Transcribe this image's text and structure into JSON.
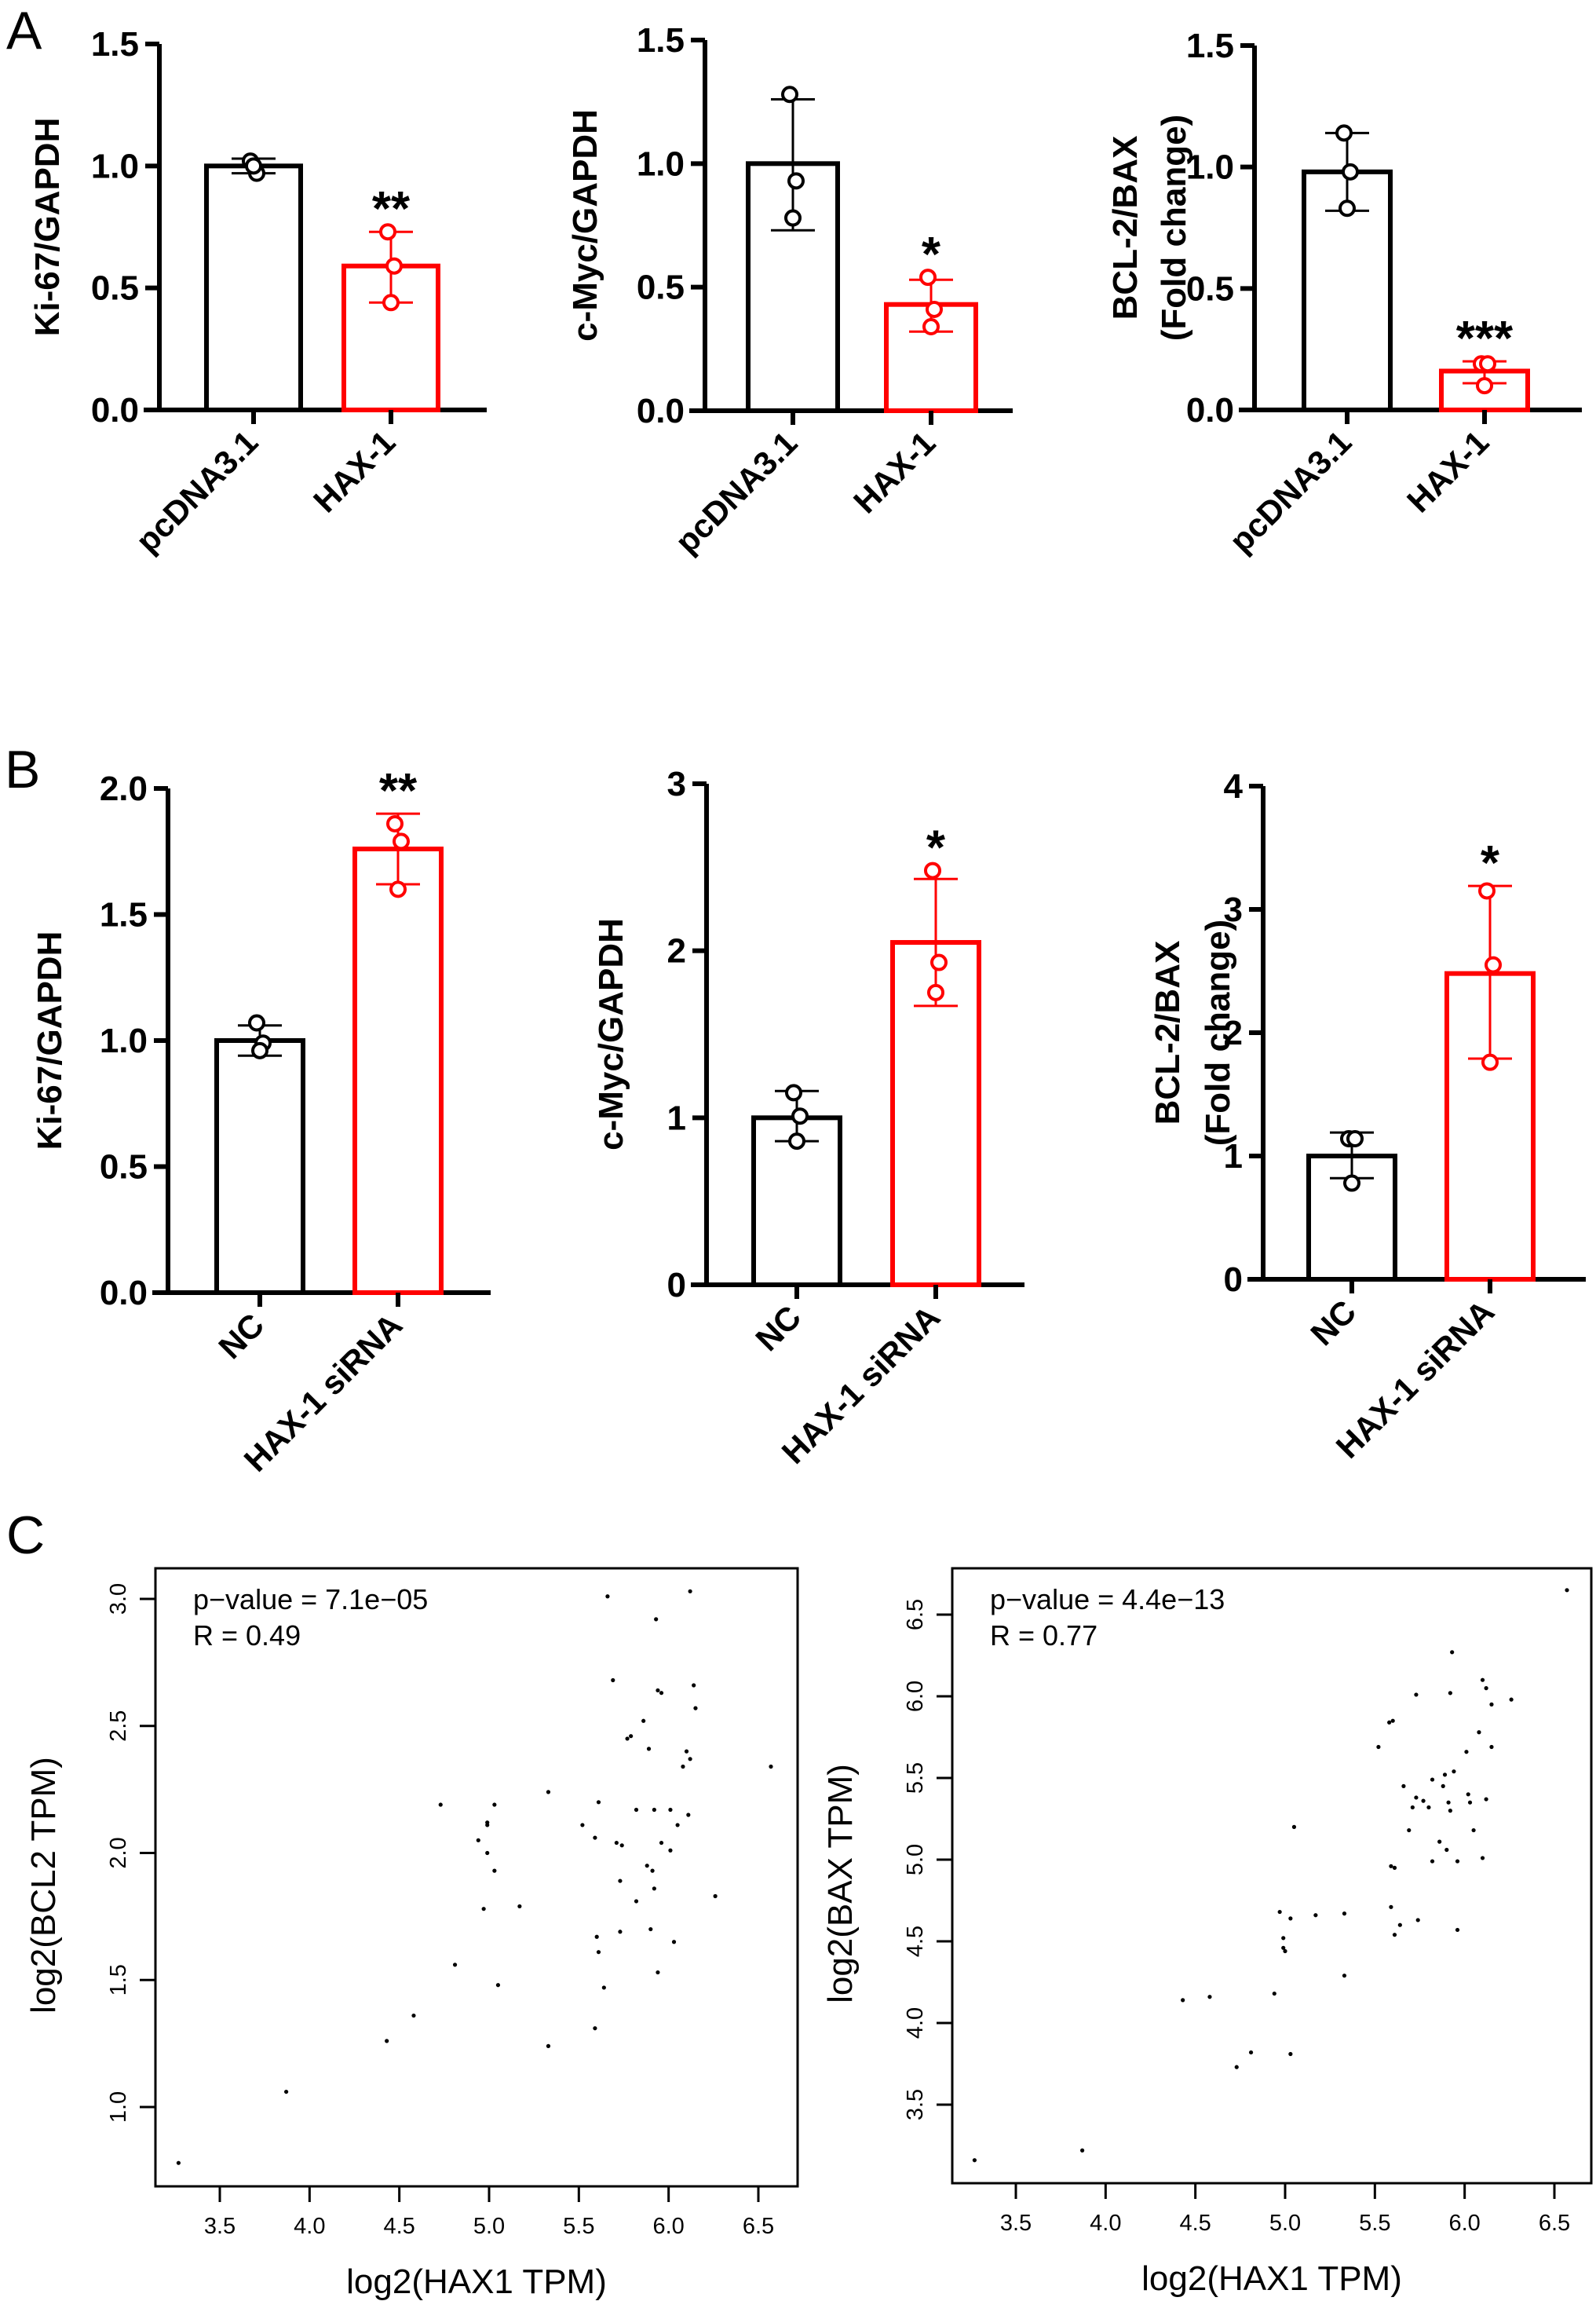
{
  "figure": {
    "panel_letters": [
      "A",
      "B",
      "C"
    ]
  },
  "chart_data": [
    {
      "id": "A1",
      "panel": "A",
      "type": "bar",
      "ylabel": [
        "Ki-67/GAPDH"
      ],
      "categories": [
        "pcDNA3.1",
        "HAX-1"
      ],
      "values": [
        1.0,
        0.59
      ],
      "errors": [
        [
          0.97,
          1.03
        ],
        [
          0.44,
          0.73
        ]
      ],
      "points": [
        [
          1.02,
          0.97,
          1.0
        ],
        [
          0.73,
          0.59,
          0.44
        ]
      ],
      "colors": [
        "#000000",
        "#ff0000"
      ],
      "significance": [
        "",
        "**"
      ],
      "ylim": [
        0,
        1.5
      ],
      "yticks": [
        0.0,
        0.5,
        1.0,
        1.5
      ],
      "ytick_labels": [
        "0.0",
        "0.5",
        "1.0",
        "1.5"
      ]
    },
    {
      "id": "A2",
      "panel": "A",
      "type": "bar",
      "ylabel": [
        "c-Myc/GAPDH"
      ],
      "categories": [
        "pcDNA3.1",
        "HAX-1"
      ],
      "values": [
        1.0,
        0.43
      ],
      "errors": [
        [
          0.73,
          1.26
        ],
        [
          0.32,
          0.53
        ]
      ],
      "points": [
        [
          1.28,
          0.93,
          0.78
        ],
        [
          0.54,
          0.41,
          0.34
        ]
      ],
      "colors": [
        "#000000",
        "#ff0000"
      ],
      "significance": [
        "",
        "*"
      ],
      "ylim": [
        0,
        1.5
      ],
      "yticks": [
        0.0,
        0.5,
        1.0,
        1.5
      ],
      "ytick_labels": [
        "0.0",
        "0.5",
        "1.0",
        "1.5"
      ]
    },
    {
      "id": "A3",
      "panel": "A",
      "type": "bar",
      "ylabel": [
        "BCL-2/BAX",
        "(Fold change)"
      ],
      "categories": [
        "pcDNA3.1",
        "HAX-1"
      ],
      "values": [
        0.98,
        0.16
      ],
      "errors": [
        [
          0.82,
          1.14
        ],
        [
          0.11,
          0.2
        ]
      ],
      "points": [
        [
          1.14,
          0.98,
          0.83
        ],
        [
          0.19,
          0.19,
          0.1
        ]
      ],
      "colors": [
        "#000000",
        "#ff0000"
      ],
      "significance": [
        "",
        "***"
      ],
      "ylim": [
        0,
        1.5
      ],
      "yticks": [
        0.0,
        0.5,
        1.0,
        1.5
      ],
      "ytick_labels": [
        "0.0",
        "0.5",
        "1.0",
        "1.5"
      ]
    },
    {
      "id": "B1",
      "panel": "B",
      "type": "bar",
      "ylabel": [
        "Ki-67/GAPDH"
      ],
      "categories": [
        "NC",
        "HAX-1 siRNA"
      ],
      "values": [
        1.0,
        1.76
      ],
      "errors": [
        [
          0.94,
          1.06
        ],
        [
          1.62,
          1.9
        ]
      ],
      "points": [
        [
          1.07,
          0.99,
          0.96
        ],
        [
          1.86,
          1.79,
          1.6
        ]
      ],
      "colors": [
        "#000000",
        "#ff0000"
      ],
      "significance": [
        "",
        "**"
      ],
      "ylim": [
        0,
        2.0
      ],
      "yticks": [
        0.0,
        0.5,
        1.0,
        1.5,
        2.0
      ],
      "ytick_labels": [
        "0.0",
        "0.5",
        "1.0",
        "1.5",
        "2.0"
      ]
    },
    {
      "id": "B2",
      "panel": "B",
      "type": "bar",
      "ylabel": [
        "c-Myc/GAPDH"
      ],
      "categories": [
        "NC",
        "HAX-1 siRNA"
      ],
      "values": [
        1.0,
        2.05
      ],
      "errors": [
        [
          0.86,
          1.16
        ],
        [
          1.67,
          2.43
        ]
      ],
      "points": [
        [
          1.15,
          1.01,
          0.86
        ],
        [
          2.48,
          1.93,
          1.75
        ]
      ],
      "colors": [
        "#000000",
        "#ff0000"
      ],
      "significance": [
        "",
        "*"
      ],
      "ylim": [
        0,
        3
      ],
      "yticks": [
        0,
        1,
        2,
        3
      ],
      "ytick_labels": [
        "0",
        "1",
        "2",
        "3"
      ]
    },
    {
      "id": "B3",
      "panel": "B",
      "type": "bar",
      "ylabel": [
        "BCL-2/BAX",
        "(Fold change)"
      ],
      "categories": [
        "NC",
        "HAX-1 siRNA"
      ],
      "values": [
        1.0,
        2.48
      ],
      "errors": [
        [
          0.82,
          1.19
        ],
        [
          1.79,
          3.19
        ]
      ],
      "points": [
        [
          1.14,
          1.14,
          0.78
        ],
        [
          3.15,
          2.55,
          1.76
        ]
      ],
      "colors": [
        "#000000",
        "#ff0000"
      ],
      "significance": [
        "",
        "*"
      ],
      "ylim": [
        0,
        4
      ],
      "yticks": [
        0,
        1,
        2,
        3,
        4
      ],
      "ytick_labels": [
        "0",
        "1",
        "2",
        "3",
        "4"
      ]
    },
    {
      "id": "C1",
      "panel": "C",
      "type": "scatter",
      "xlabel": "log2(HAX1 TPM)",
      "ylabel": "log2(BCL2 TPM)",
      "annotations": [
        "p−value = 7.1e−05",
        "R = 0.49"
      ],
      "xlim": [
        3.25,
        6.6
      ],
      "ylim": [
        0.7,
        3.1
      ],
      "xticks": [
        3.5,
        4.0,
        4.5,
        5.0,
        5.5,
        6.0,
        6.5
      ],
      "xtick_labels": [
        "3.5",
        "4.0",
        "4.5",
        "5.0",
        "5.5",
        "6.0",
        "6.5"
      ],
      "yticks": [
        1.0,
        1.5,
        2.0,
        2.5,
        3.0
      ],
      "ytick_labels": [
        "1.0",
        "1.5",
        "2.0",
        "2.5",
        "3.0"
      ],
      "x": [
        3.27,
        3.87,
        4.43,
        4.58,
        4.73,
        4.81,
        4.94,
        4.97,
        4.99,
        4.99,
        4.99,
        5.03,
        5.03,
        5.05,
        5.17,
        5.33,
        5.33,
        5.52,
        5.59,
        5.59,
        5.6,
        5.61,
        5.61,
        5.64,
        5.66,
        5.69,
        5.71,
        5.73,
        5.73,
        5.74,
        5.77,
        5.79,
        5.82,
        5.82,
        5.86,
        5.88,
        5.89,
        5.9,
        5.91,
        5.92,
        5.92,
        5.93,
        5.94,
        5.94,
        5.96,
        5.96,
        6.01,
        6.01,
        6.03,
        6.05,
        6.08,
        6.1,
        6.11,
        6.12,
        6.12,
        6.14,
        6.15,
        6.26,
        6.57
      ],
      "y": [
        0.78,
        1.06,
        1.26,
        1.36,
        2.19,
        1.56,
        2.05,
        1.78,
        2.12,
        2.11,
        2.0,
        2.19,
        1.93,
        1.48,
        1.79,
        2.24,
        1.24,
        2.11,
        2.06,
        1.31,
        1.67,
        2.2,
        1.61,
        1.47,
        3.01,
        2.68,
        2.04,
        1.89,
        1.69,
        2.03,
        2.45,
        2.46,
        2.17,
        1.81,
        2.52,
        1.95,
        2.41,
        1.7,
        1.93,
        1.86,
        2.17,
        2.92,
        2.64,
        1.53,
        2.63,
        2.04,
        2.17,
        2.01,
        1.65,
        2.11,
        2.34,
        2.4,
        2.15,
        2.37,
        3.03,
        2.66,
        2.57,
        1.83,
        2.34
      ]
    },
    {
      "id": "C2",
      "panel": "C",
      "type": "scatter",
      "xlabel": "log2(HAX1 TPM)",
      "ylabel": "log2(BAX TPM)",
      "annotations": [
        "p−value = 4.4e−13",
        "R = 0.77"
      ],
      "xlim": [
        3.25,
        6.6
      ],
      "ylim": [
        3.1,
        6.7
      ],
      "xticks": [
        3.5,
        4.0,
        4.5,
        5.0,
        5.5,
        6.0,
        6.5
      ],
      "xtick_labels": [
        "3.5",
        "4.0",
        "4.5",
        "5.0",
        "5.5",
        "6.0",
        "6.5"
      ],
      "yticks": [
        3.5,
        4.0,
        4.5,
        5.0,
        5.5,
        6.0,
        6.5
      ],
      "ytick_labels": [
        "3.5",
        "4.0",
        "4.5",
        "5.0",
        "5.5",
        "6.0",
        "6.5"
      ],
      "x": [
        3.27,
        3.87,
        4.43,
        4.58,
        4.73,
        4.81,
        4.94,
        4.97,
        4.99,
        4.99,
        5.0,
        5.03,
        5.03,
        5.05,
        5.17,
        5.33,
        5.33,
        5.52,
        5.58,
        5.59,
        5.59,
        5.6,
        5.61,
        5.61,
        5.64,
        5.66,
        5.69,
        5.71,
        5.73,
        5.73,
        5.74,
        5.77,
        5.8,
        5.82,
        5.82,
        5.86,
        5.88,
        5.89,
        5.9,
        5.91,
        5.92,
        5.92,
        5.93,
        5.94,
        5.96,
        5.96,
        6.01,
        6.02,
        6.03,
        6.05,
        6.08,
        6.1,
        6.1,
        6.12,
        6.12,
        6.15,
        6.15,
        6.26,
        6.57
      ],
      "y": [
        3.16,
        3.22,
        4.14,
        4.16,
        3.73,
        3.82,
        4.18,
        4.68,
        4.52,
        4.46,
        4.44,
        4.64,
        3.81,
        5.2,
        4.66,
        4.67,
        4.29,
        5.69,
        5.84,
        4.96,
        4.71,
        5.85,
        4.95,
        4.54,
        4.6,
        5.45,
        5.18,
        5.32,
        5.38,
        6.01,
        4.63,
        5.36,
        5.32,
        5.49,
        4.99,
        5.11,
        5.45,
        5.52,
        5.06,
        5.35,
        5.3,
        6.02,
        6.27,
        5.54,
        4.57,
        4.99,
        5.66,
        5.4,
        5.35,
        5.18,
        5.78,
        5.01,
        6.1,
        5.37,
        6.05,
        5.69,
        5.95,
        5.98,
        6.65
      ]
    }
  ]
}
